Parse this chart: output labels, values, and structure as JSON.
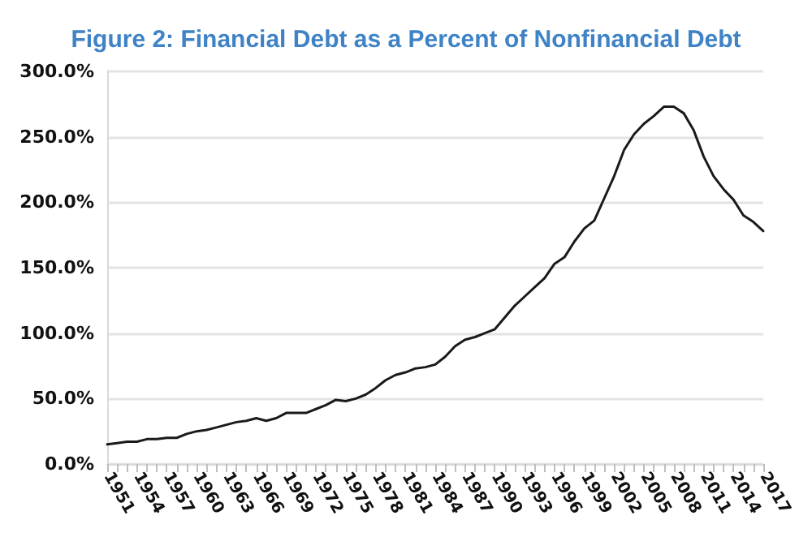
{
  "chart_data": {
    "type": "line",
    "title": "Figure 2: Financial Debt as a Percent of Nonfinancial Debt",
    "categories": [
      "1951",
      null,
      null,
      "1954",
      null,
      null,
      "1957",
      null,
      null,
      "1960",
      null,
      null,
      "1963",
      null,
      null,
      "1966",
      null,
      null,
      "1969",
      null,
      null,
      "1972",
      null,
      null,
      "1975",
      null,
      null,
      "1978",
      null,
      null,
      "1981",
      null,
      null,
      "1984",
      null,
      null,
      "1987",
      null,
      null,
      "1990",
      null,
      null,
      "1993",
      null,
      null,
      "1996",
      null,
      null,
      "1999",
      null,
      null,
      "2002",
      null,
      null,
      "2005",
      null,
      null,
      "2008",
      null,
      null,
      "2011",
      null,
      null,
      "2014",
      null,
      null,
      "2017"
    ],
    "series": [
      {
        "color": "#1a1a1a",
        "values": [
          15,
          16,
          17,
          17,
          19,
          19,
          20,
          20,
          23,
          25,
          26,
          28,
          30,
          32,
          33,
          35,
          33,
          35,
          39,
          39,
          39,
          42,
          45,
          49,
          48,
          50,
          53,
          58,
          64,
          68,
          70,
          73,
          74,
          76,
          82,
          90,
          95,
          97,
          100,
          103,
          112,
          121,
          128,
          135,
          142,
          153,
          158,
          170,
          180,
          186,
          203,
          220,
          240,
          252,
          260,
          266,
          273,
          273,
          268,
          255,
          235,
          220,
          210,
          202,
          190,
          185,
          178
        ]
      }
    ],
    "ylim": [
      0,
      300
    ],
    "yticks": [
      {
        "value": 0,
        "label": "0.0%"
      },
      {
        "value": 50,
        "label": "50.0%"
      },
      {
        "value": 100,
        "label": "100.0%"
      },
      {
        "value": 150,
        "label": "150.0%"
      },
      {
        "value": 200,
        "label": "200.0%"
      },
      {
        "value": 250,
        "label": "250.0%"
      },
      {
        "value": 300,
        "label": "300.0%"
      }
    ],
    "grid": "y",
    "marker": "none",
    "line_style": "solid"
  }
}
